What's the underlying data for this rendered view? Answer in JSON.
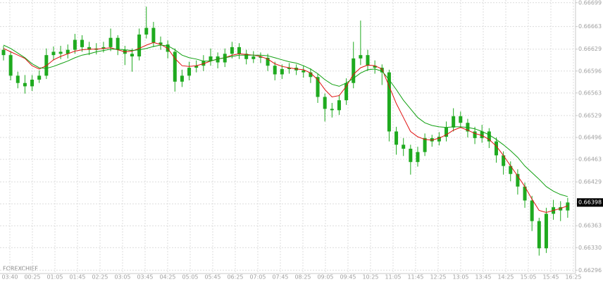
{
  "chart_data": {
    "type": "candlestick",
    "watermark": "FOREXCHIEF",
    "ylim": [
      0.66291,
      0.66703
    ],
    "yticks": [
      0.66699,
      0.66663,
      0.66629,
      0.66596,
      0.66563,
      0.66529,
      0.66496,
      0.66463,
      0.66429,
      0.66396,
      0.66363,
      {
        "value": 0.6633,
        "label": "0.66330"
      },
      0.66296
    ],
    "xlabels": [
      "03:40",
      "00:25",
      "01:05",
      "01:45",
      "02:25",
      "03:05",
      "03:45",
      "04:25",
      "05:05",
      "05:45",
      "06:25",
      "07:05",
      "07:45",
      "08:25",
      "09:05",
      "09:45",
      "10:25",
      "11:05",
      "11:45",
      "12:25",
      "13:05",
      "13:45",
      "14:25",
      "15:05",
      "15:45",
      "16:25"
    ],
    "grid": true,
    "color": "#1faa1f",
    "open": [
      0.66628,
      0.6662,
      0.66589,
      0.66578,
      0.66573,
      0.66583,
      0.66589,
      0.6662,
      0.66625,
      0.66622,
      0.66628,
      0.66643,
      0.66632,
      0.66628,
      0.6663,
      0.66632,
      0.66646,
      0.66628,
      0.66622,
      0.66618,
      0.66651,
      0.66661,
      0.66639,
      0.66636,
      0.66625,
      0.6658,
      0.66589,
      0.66601,
      0.66604,
      0.66611,
      0.66618,
      0.66609,
      0.66622,
      0.66632,
      0.66622,
      0.66614,
      0.66618,
      0.66616,
      0.66604,
      0.66591,
      0.66599,
      0.66601,
      0.66597,
      0.66594,
      0.66587,
      0.66557,
      0.66539,
      0.66537,
      0.66552,
      0.66578,
      0.66615,
      0.6662,
      0.66604,
      0.66601,
      0.66594,
      0.66505,
      0.66485,
      0.66479,
      0.66459,
      0.66474,
      0.66495,
      0.6649,
      0.66497,
      0.66511,
      0.66528,
      0.66518,
      0.66505,
      0.66495,
      0.66505,
      0.6649,
      0.66469,
      0.66453,
      0.66441,
      0.66422,
      0.66401,
      0.6637,
      0.66329,
      0.66381,
      0.66391,
      0.66386
    ],
    "high": [
      0.66634,
      0.66626,
      0.66595,
      0.6659,
      0.6659,
      0.66597,
      0.6663,
      0.66633,
      0.66634,
      0.66636,
      0.66652,
      0.6665,
      0.6664,
      0.66638,
      0.6664,
      0.6666,
      0.6665,
      0.66634,
      0.6663,
      0.6666,
      0.66693,
      0.6667,
      0.66648,
      0.66642,
      0.6663,
      0.66598,
      0.6661,
      0.66612,
      0.6662,
      0.6663,
      0.66624,
      0.6663,
      0.6664,
      0.66638,
      0.66628,
      0.66626,
      0.66624,
      0.66622,
      0.6661,
      0.66606,
      0.66608,
      0.66606,
      0.66604,
      0.666,
      0.66592,
      0.66562,
      0.66548,
      0.6656,
      0.66585,
      0.6664,
      0.66672,
      0.66628,
      0.66612,
      0.66606,
      0.66598,
      0.66512,
      0.66495,
      0.66485,
      0.66482,
      0.66502,
      0.665,
      0.66504,
      0.6652,
      0.6654,
      0.66535,
      0.66524,
      0.66512,
      0.66515,
      0.6651,
      0.66496,
      0.66475,
      0.6646,
      0.66448,
      0.66428,
      0.66408,
      0.66375,
      0.6639,
      0.66402,
      0.664,
      0.66405
    ],
    "low": [
      0.66612,
      0.66582,
      0.6657,
      0.66562,
      0.66566,
      0.66578,
      0.66584,
      0.66612,
      0.66614,
      0.66615,
      0.66622,
      0.66625,
      0.6662,
      0.66621,
      0.66624,
      0.66626,
      0.6662,
      0.66605,
      0.66595,
      0.66612,
      0.66645,
      0.66632,
      0.66628,
      0.66615,
      0.66565,
      0.66572,
      0.66582,
      0.66594,
      0.66596,
      0.66604,
      0.666,
      0.66602,
      0.66615,
      0.66614,
      0.66606,
      0.66608,
      0.66608,
      0.66596,
      0.66582,
      0.66584,
      0.66592,
      0.6659,
      0.66586,
      0.66578,
      0.66548,
      0.6652,
      0.66526,
      0.6653,
      0.66545,
      0.6657,
      0.66605,
      0.66596,
      0.66592,
      0.66575,
      0.6649,
      0.6647,
      0.66468,
      0.6644,
      0.66452,
      0.66468,
      0.66482,
      0.66484,
      0.6649,
      0.66505,
      0.6651,
      0.66496,
      0.66486,
      0.66488,
      0.6648,
      0.66458,
      0.6644,
      0.6643,
      0.6641,
      0.6639,
      0.66355,
      0.66318,
      0.66322,
      0.66372,
      0.6637,
      0.66375
    ],
    "close": [
      0.6662,
      0.66589,
      0.66578,
      0.66573,
      0.66583,
      0.66589,
      0.6662,
      0.66625,
      0.66622,
      0.66628,
      0.66643,
      0.66632,
      0.66628,
      0.6663,
      0.66632,
      0.66646,
      0.66628,
      0.66622,
      0.66618,
      0.66651,
      0.66661,
      0.66639,
      0.66636,
      0.66625,
      0.6658,
      0.66589,
      0.66601,
      0.66604,
      0.66611,
      0.66618,
      0.66609,
      0.66622,
      0.66632,
      0.66622,
      0.66614,
      0.66618,
      0.66616,
      0.66604,
      0.66591,
      0.66599,
      0.66601,
      0.66597,
      0.66594,
      0.66587,
      0.66557,
      0.66539,
      0.66537,
      0.66552,
      0.66578,
      0.66615,
      0.6662,
      0.66604,
      0.66601,
      0.66594,
      0.66505,
      0.66485,
      0.66479,
      0.66459,
      0.66474,
      0.66495,
      0.6649,
      0.66497,
      0.66511,
      0.66528,
      0.66518,
      0.66505,
      0.66495,
      0.66505,
      0.6649,
      0.66469,
      0.66453,
      0.66441,
      0.66422,
      0.66401,
      0.6637,
      0.66329,
      0.66381,
      0.66391,
      0.66386,
      0.66398
    ],
    "series": [
      {
        "color": "#e01010",
        "values": [
          0.6663,
          0.66625,
          0.6662,
          0.66615,
          0.66604,
          0.66599,
          0.66604,
          0.66613,
          0.66618,
          0.66622,
          0.66626,
          0.66628,
          0.66629,
          0.66629,
          0.6663,
          0.66631,
          0.66628,
          0.66625,
          0.66626,
          0.6663,
          0.66635,
          0.66639,
          0.66636,
          0.6663,
          0.66615,
          0.66604,
          0.66603,
          0.66604,
          0.66607,
          0.66611,
          0.66614,
          0.66616,
          0.6662,
          0.66622,
          0.66621,
          0.6662,
          0.66618,
          0.66614,
          0.66607,
          0.66603,
          0.66601,
          0.66599,
          0.66598,
          0.66593,
          0.66583,
          0.66568,
          0.66557,
          0.66559,
          0.66573,
          0.66591,
          0.66601,
          0.66605,
          0.66604,
          0.66599,
          0.66573,
          0.66547,
          0.66526,
          0.66505,
          0.66497,
          0.66493,
          0.66492,
          0.66495,
          0.665,
          0.66507,
          0.66511,
          0.66507,
          0.66502,
          0.66499,
          0.66493,
          0.66483,
          0.66469,
          0.66453,
          0.66438,
          0.66422,
          0.66403,
          0.66386,
          0.66383,
          0.66386,
          0.66389,
          0.66393
        ]
      },
      {
        "color": "#10a010",
        "values": [
          0.66635,
          0.6663,
          0.66623,
          0.66616,
          0.66607,
          0.66601,
          0.666,
          0.66603,
          0.66607,
          0.66611,
          0.66616,
          0.6662,
          0.66622,
          0.66625,
          0.66627,
          0.66629,
          0.66629,
          0.66628,
          0.66627,
          0.66628,
          0.6663,
          0.66633,
          0.66635,
          0.66634,
          0.66628,
          0.6662,
          0.66616,
          0.66614,
          0.66611,
          0.66611,
          0.66614,
          0.66616,
          0.66618,
          0.6662,
          0.6662,
          0.6662,
          0.6662,
          0.66619,
          0.66616,
          0.66613,
          0.6661,
          0.66608,
          0.66604,
          0.66599,
          0.66592,
          0.66583,
          0.66576,
          0.66573,
          0.66578,
          0.66585,
          0.66593,
          0.66598,
          0.66599,
          0.66596,
          0.66583,
          0.66568,
          0.66552,
          0.66539,
          0.66526,
          0.66518,
          0.66514,
          0.66512,
          0.66511,
          0.66512,
          0.66512,
          0.66511,
          0.66509,
          0.66505,
          0.665,
          0.66493,
          0.66485,
          0.66476,
          0.66466,
          0.66453,
          0.66443,
          0.66433,
          0.66422,
          0.66415,
          0.6641,
          0.66407
        ]
      }
    ]
  }
}
